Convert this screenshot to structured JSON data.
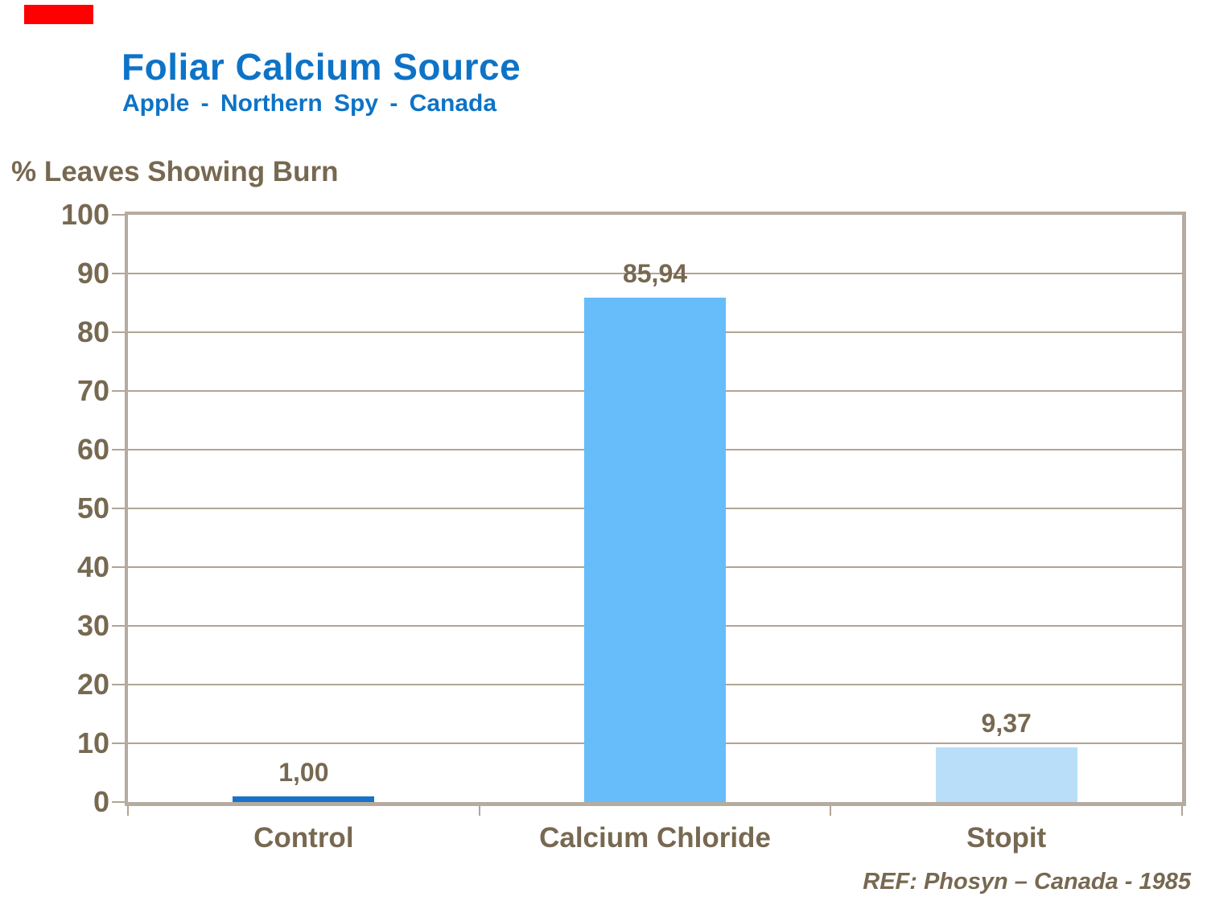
{
  "header": {
    "title": "Foliar Calcium Source",
    "subtitle": "Apple - Northern Spy - Canada"
  },
  "annotation": {
    "red_box_color": "#ff0000"
  },
  "footer": {
    "reference": "REF: Phosyn – Canada - 1985"
  },
  "chart_data": {
    "type": "bar",
    "title": "Foliar Calcium Source",
    "subtitle": "Apple - Northern Spy - Canada",
    "ylabel": "% Leaves Showing Burn",
    "categories": [
      "Control",
      "Calcium Chloride",
      "Stopit"
    ],
    "values": [
      1.0,
      85.94,
      9.37
    ],
    "value_labels": [
      "1,00",
      "85,94",
      "9,37"
    ],
    "bar_colors": [
      "#1673c8",
      "#66bdfa",
      "#b9def9"
    ],
    "ylim": [
      0,
      100
    ],
    "yticks": [
      0,
      10,
      20,
      30,
      40,
      50,
      60,
      70,
      80,
      90,
      100
    ],
    "grid": "horizontal",
    "legend": "none",
    "title_color": "#0d73c7",
    "text_color": "#776851",
    "frame_color": "#b5aba0",
    "gridline_color": "#b2a494"
  }
}
